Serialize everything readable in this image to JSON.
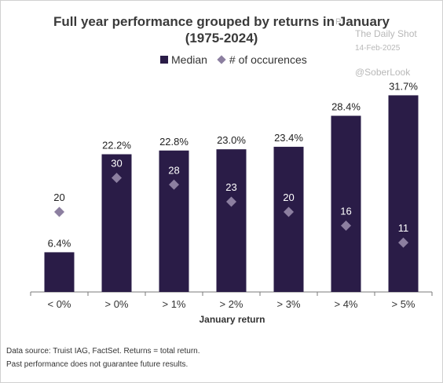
{
  "title_line1": "Full year performance grouped by returns in January",
  "title_line2": "(1975-2024)",
  "watermark": {
    "source": "The Daily Shot",
    "date": "14-Feb-2025",
    "handle": "@SoberLook",
    "partial": "P"
  },
  "legend": {
    "median_label": "Median",
    "occurrences_label": "# of occurences"
  },
  "colors": {
    "bar": "#2a1c47",
    "marker": "#8c7fa0",
    "bar_label_on_bar": "#ffffff"
  },
  "footnotes": [
    "Data source: Truist IAG, FactSet. Returns = total return.",
    "Past performance does not guarantee future results."
  ],
  "chart_data": {
    "type": "bar",
    "xlabel": "January return",
    "ylabel": "",
    "categories": [
      "< 0%",
      "> 0%",
      "> 1%",
      "> 2%",
      "> 3%",
      "> 4%",
      "> 5%"
    ],
    "series": [
      {
        "name": "Median",
        "kind": "bar",
        "values": [
          6.4,
          22.2,
          22.8,
          23.0,
          23.4,
          28.4,
          31.7
        ],
        "labels": [
          "6.4%",
          "22.2%",
          "22.8%",
          "23.0%",
          "23.4%",
          "28.4%",
          "31.7%"
        ]
      },
      {
        "name": "# of occurences",
        "kind": "marker",
        "values": [
          20,
          30,
          28,
          23,
          20,
          16,
          11
        ],
        "labels": [
          "20",
          "30",
          "28",
          "23",
          "20",
          "16",
          "11"
        ]
      }
    ],
    "ylim": [
      0,
      33.4
    ],
    "grid": false,
    "legend_position": "top-center"
  }
}
